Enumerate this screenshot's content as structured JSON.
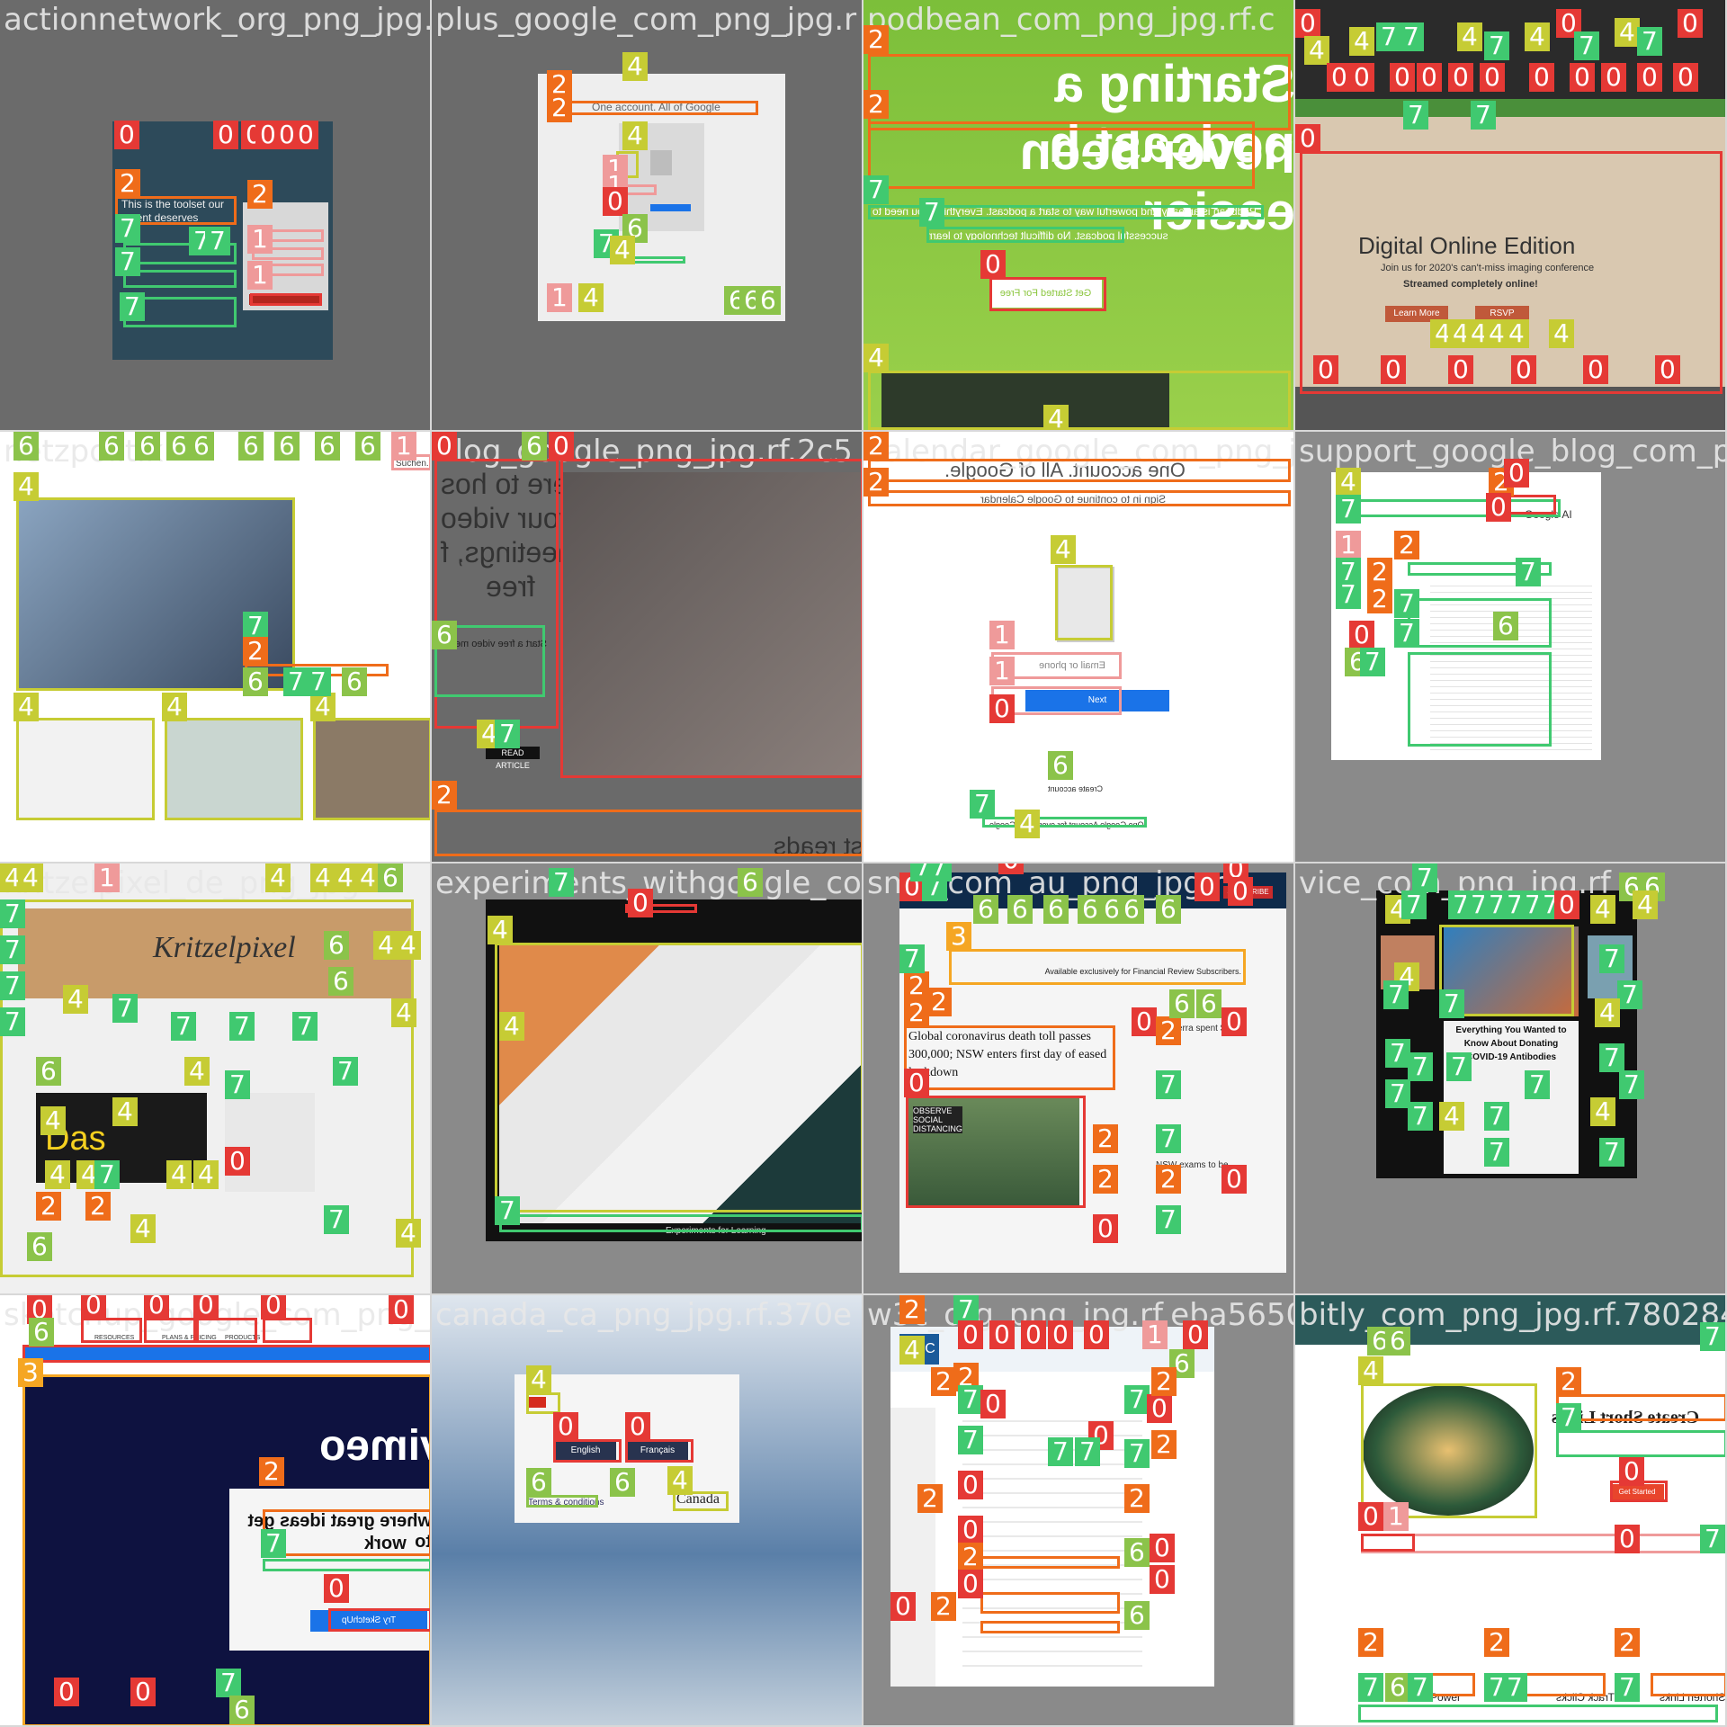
{
  "tiles": [
    {
      "name": "actionnetwork_org_png_jpg.r",
      "text1": "This is the toolset our",
      "text2": "ement deserves"
    },
    {
      "name": "plus_google_com_png_jpg.r",
      "text1": "One account. All of Google"
    },
    {
      "name": "podbean_com_png_jpg.rf.c",
      "text1": "Starting a podcast h",
      "text2": "never been easier",
      "text3": "Podbean is an easy and powerful way to start a podcast. Everything you need to",
      "text4": "successful podcast. No difficult technology to learn",
      "btn": "Get Started For Free"
    },
    {
      "name": "",
      "text1": "Digital Online Edition",
      "text2": "Join us for 2020's can't-miss imaging conference",
      "text3": "Streamed completely online!",
      "btn1": "Learn More",
      "btn2": "RSVP"
    },
    {
      "name": "netzpolitik",
      "text1": "Suchen..."
    },
    {
      "name": "blog_google_png_jpg.rf.2c5",
      "text1": "here to hos",
      "text2": "your video",
      "text3": "meetings, f",
      "text4": "free",
      "text5": "Start a free video meeting",
      "text6": "READ ARTICLE",
      "text7": "st reads"
    },
    {
      "name": "calendar_google_com_png_jpg.rf",
      "text1": "One account. All of Google.",
      "text2": "Sign in to continue to Google Calendar",
      "input": "Email or phone",
      "btn": "Next",
      "text3": "Create account",
      "text4": "One Google Account for everything Google"
    },
    {
      "name": "support_google_blog_com_p",
      "text1": "Google AI"
    },
    {
      "name": "kritzelpixel_de_png_jpg",
      "text1": "Kritzelpixel",
      "text2": "Das"
    },
    {
      "name": "experiments_withgoogle_com",
      "text1": "Experiments for Learning"
    },
    {
      "name": "smh_com_au_png_jpg.rf",
      "text1": "Available exclusively for Financial Review Subscribers.",
      "text2": "Global coronavirus death toll passes",
      "text3": "300,000; NSW enters first day of eased",
      "text4": "lockdown",
      "text5": "Canberra spent $10",
      "text6": "NSW exams to be",
      "btn": "SUBSCRIBE",
      "text7": "OBSERVE SOCIAL DISTANCING"
    },
    {
      "name": "vice_com_png_jpg.rf",
      "text1": "Everything You Wanted to",
      "text2": "Know About Donating",
      "text3": "COVID-19 Antibodies"
    },
    {
      "name": "sketchup_google_com_png_jpg",
      "text1": "vimeo",
      "text2": "where great ideas get to",
      "text3": "work",
      "btn": "Try SketchUp",
      "nav": [
        "RESOURCES",
        "PLANS & PRICING",
        "PRODUCTS"
      ]
    },
    {
      "name": "canada_ca_png_jpg.rf.370e",
      "btn1": "English",
      "btn2": "Français",
      "text1": "Terms & conditions",
      "text2": "Canada"
    },
    {
      "name": "w3c_org_png_jpg.rf.eba5650",
      "text1": "W3C"
    },
    {
      "name": "bitly_com_png_jpg.rf.780284",
      "text1": "Create Short Links",
      "btn": "Get Started",
      "text2": "Power",
      "text3": "Track Clicks",
      "text4": "Shorten Links"
    }
  ],
  "legend": {
    "c0": "0",
    "c1": "1",
    "c2": "2",
    "c3": "3",
    "c4": "4",
    "c6": "6",
    "c7": "7"
  }
}
